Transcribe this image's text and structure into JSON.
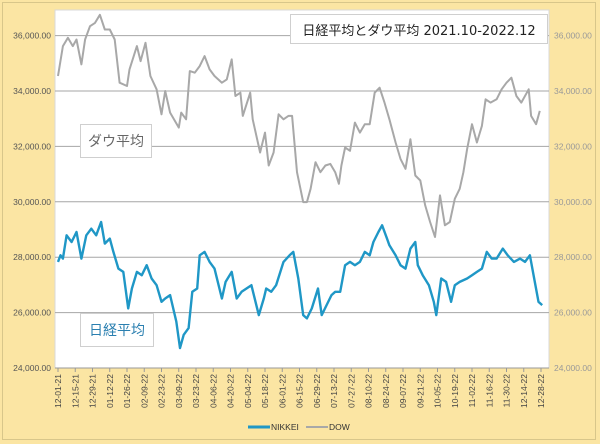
{
  "chart_data": {
    "type": "line",
    "title": "日経平均とダウ平均 2021.10-2022.12",
    "x_unit": "days since 12-01-21",
    "ylim": [
      24000,
      37000
    ],
    "yticks": [
      24000,
      26000,
      28000,
      30000,
      32000,
      34000,
      36000
    ],
    "ytick_labels": [
      "24,000.00",
      "26,000.00",
      "28,000.00",
      "30,000.00",
      "32,000.00",
      "34,000.00",
      "36,000.00"
    ],
    "xtick_labels": [
      "12-01-21",
      "12-15-21",
      "12-29-21",
      "01-12-22",
      "01-26-22",
      "02-09-22",
      "02-23-22",
      "03-09-22",
      "03-23-22",
      "04-06-22",
      "04-20-22",
      "05-04-22",
      "05-18-22",
      "06-01-22",
      "06-15-22",
      "06-29-22",
      "07-13-22",
      "07-27-22",
      "08-10-22",
      "08-24-22",
      "09-07-22",
      "09-21-22",
      "10-05-22",
      "10-19-22",
      "11-02-22",
      "11-16-22",
      "11-30-22",
      "12-14-22",
      "12-28-22"
    ],
    "xtick_interval_days": 14,
    "grid": true,
    "legend_position": "bottom",
    "annotations": [
      "ダウ平均",
      "日経平均"
    ],
    "series": [
      {
        "name": "NIKKEI",
        "color": "#1f97c6",
        "x": [
          0,
          2,
          4,
          7,
          11,
          15,
          19,
          23,
          27,
          31,
          35,
          38,
          42,
          45,
          49,
          53,
          57,
          60,
          64,
          68,
          72,
          76,
          80,
          84,
          87,
          91,
          96,
          99,
          102,
          106,
          109,
          113,
          115,
          119,
          123,
          127,
          133,
          136,
          141,
          145,
          149,
          153,
          157,
          163,
          167,
          169,
          173,
          177,
          183,
          188,
          191,
          195,
          199,
          202,
          206,
          211,
          214,
          218,
          222,
          225,
          229,
          233,
          237,
          241,
          245,
          249,
          253,
          256,
          260,
          263,
          267,
          269,
          274,
          278,
          282,
          286,
          290,
          292,
          296,
          301,
          305,
          307,
          311,
          315,
          319,
          322,
          326,
          332,
          336,
          340,
          344,
          348,
          352,
          356,
          361,
          365,
          370,
          375,
          379,
          383,
          387,
          390,
          393
        ],
        "y": [
          27830,
          28070,
          27950,
          28790,
          28550,
          28910,
          27950,
          28790,
          29030,
          28790,
          29270,
          28490,
          28670,
          28190,
          27590,
          27470,
          26150,
          26870,
          27470,
          27350,
          27710,
          27230,
          26990,
          26390,
          26510,
          26630,
          25680,
          24720,
          25200,
          25440,
          26750,
          26870,
          28070,
          28190,
          27830,
          27590,
          26510,
          27110,
          27470,
          26510,
          26750,
          26870,
          26990,
          25910,
          26510,
          26870,
          26750,
          26990,
          27830,
          28070,
          28190,
          27230,
          25910,
          25790,
          26150,
          26870,
          25910,
          26270,
          26630,
          26750,
          26750,
          27710,
          27830,
          27710,
          27830,
          28190,
          28070,
          28550,
          28910,
          29150,
          28670,
          28430,
          28070,
          27710,
          27590,
          28310,
          28550,
          27710,
          27350,
          26990,
          26390,
          25910,
          27230,
          27110,
          26390,
          26990,
          27110,
          27230,
          27350,
          27470,
          27590,
          28190,
          27950,
          27950,
          28310,
          28070,
          27830,
          27950,
          27830,
          28070,
          27110,
          26390,
          26270
        ]
      },
      {
        "name": "DOW",
        "color": "#a8a8a8",
        "x": [
          0,
          4,
          8,
          12,
          15,
          19,
          22,
          26,
          30,
          34,
          38,
          42,
          46,
          50,
          56,
          58,
          64,
          67,
          71,
          75,
          80,
          84,
          87,
          91,
          98,
          100,
          104,
          107,
          111,
          115,
          119,
          123,
          127,
          133,
          137,
          141,
          144,
          148,
          150,
          156,
          158,
          164,
          168,
          171,
          175,
          179,
          183,
          187,
          190,
          194,
          199,
          202,
          205,
          209,
          213,
          217,
          221,
          225,
          228,
          230,
          233,
          237,
          241,
          245,
          249,
          253,
          257,
          261,
          265,
          269,
          274,
          278,
          282,
          286,
          290,
          294,
          298,
          302,
          306,
          310,
          314,
          318,
          322,
          326,
          329,
          332,
          336,
          340,
          344,
          347,
          351,
          356,
          360,
          364,
          368,
          372,
          376,
          382,
          384,
          388,
          391
        ],
        "y": [
          34540,
          35620,
          35920,
          35620,
          35860,
          34960,
          35860,
          36340,
          36460,
          36750,
          36220,
          36220,
          35860,
          34300,
          34180,
          34780,
          35620,
          35080,
          35740,
          34540,
          34060,
          33160,
          34000,
          33220,
          32680,
          33220,
          32980,
          34720,
          34660,
          34900,
          35260,
          34780,
          34540,
          34300,
          34420,
          35140,
          33820,
          33940,
          33100,
          33940,
          32980,
          31780,
          32500,
          31310,
          31780,
          33160,
          32980,
          33100,
          33100,
          31070,
          29990,
          29990,
          30470,
          31430,
          31070,
          31310,
          31370,
          31070,
          30650,
          31310,
          31960,
          31840,
          32860,
          32500,
          32800,
          32800,
          33940,
          34120,
          33580,
          32980,
          32140,
          31550,
          31190,
          32260,
          30950,
          30770,
          29870,
          29270,
          28730,
          30230,
          29150,
          29270,
          30110,
          30470,
          31070,
          31900,
          32800,
          32140,
          32740,
          33700,
          33580,
          33700,
          34060,
          34300,
          34480,
          33820,
          33580,
          34060,
          33100,
          32800,
          33280
        ]
      }
    ]
  }
}
